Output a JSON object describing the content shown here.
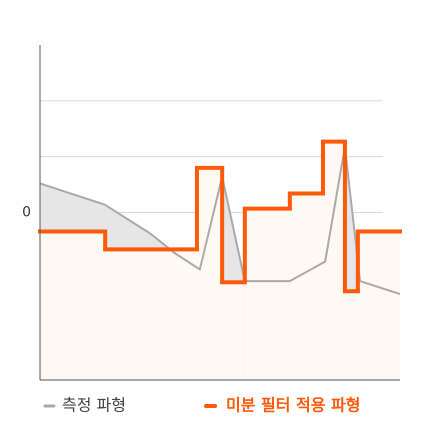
{
  "chart_data": {
    "type": "step-line",
    "ylim": [
      -3,
      3
    ],
    "yticks": [
      0
    ],
    "ygrid": [
      -2,
      -1,
      0,
      1,
      2
    ],
    "xlim": [
      0,
      10
    ],
    "series": [
      {
        "name": "측정 파형",
        "color": "#aaaaaa",
        "x": [
          0,
          1.8,
          3.07,
          3.75,
          4.44,
          5.06,
          5.69,
          6.94,
          7.92,
          8.47,
          8.89,
          10
        ],
        "values": [
          0.52,
          0.14,
          -0.38,
          -0.73,
          -1.02,
          0.64,
          -1.23,
          -1.23,
          -0.88,
          1.18,
          -1.23,
          -1.46
        ]
      },
      {
        "name": "미분 필터 적용 파형",
        "color": "#ff5a0a",
        "x": [
          0,
          1.81,
          4.36,
          5.06,
          5.69,
          6.94,
          7.86,
          8.47,
          8.83
        ],
        "values": [
          -0.34,
          -0.66,
          0.8,
          -1.25,
          0.07,
          0.34,
          1.27,
          -1.41,
          -0.34
        ]
      }
    ]
  }
}
